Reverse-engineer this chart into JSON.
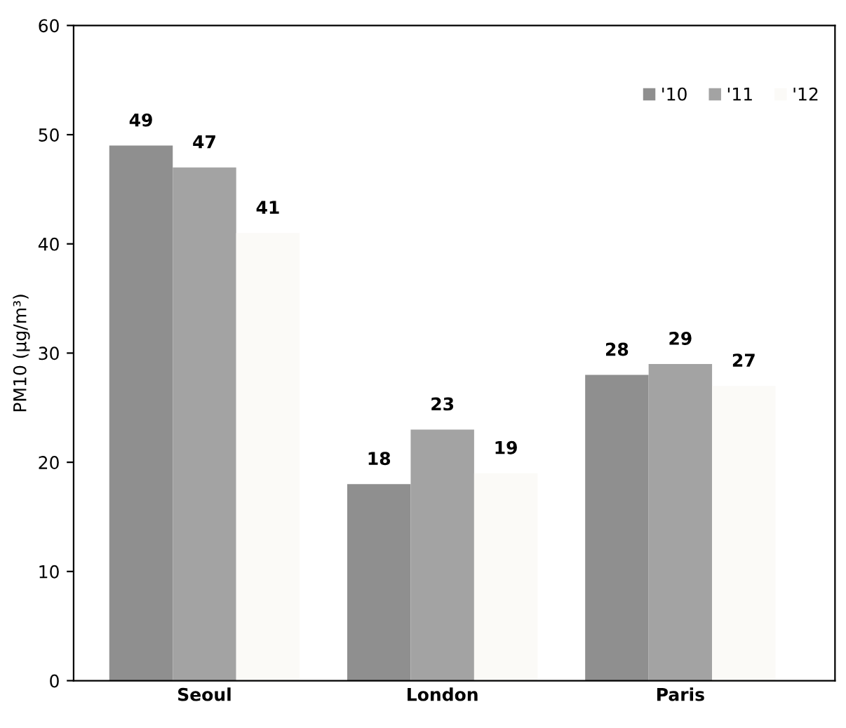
{
  "chart_data": {
    "type": "bar",
    "ylabel": "PM10 (µg/m³)",
    "categories": [
      "Seoul",
      "London",
      "Paris"
    ],
    "series": [
      {
        "name": "'10",
        "color": "#8f8f8f",
        "values": [
          49,
          18,
          28
        ]
      },
      {
        "name": "'11",
        "color": "#a3a3a3",
        "values": [
          47,
          23,
          29
        ]
      },
      {
        "name": "'12",
        "color": "#fbfaf7",
        "values": [
          41,
          19,
          27
        ]
      }
    ],
    "ylim": [
      0,
      60
    ],
    "yticks": [
      0,
      10,
      20,
      30,
      40,
      50,
      60
    ],
    "grid": false,
    "legend": "top right",
    "data_labels": true
  }
}
